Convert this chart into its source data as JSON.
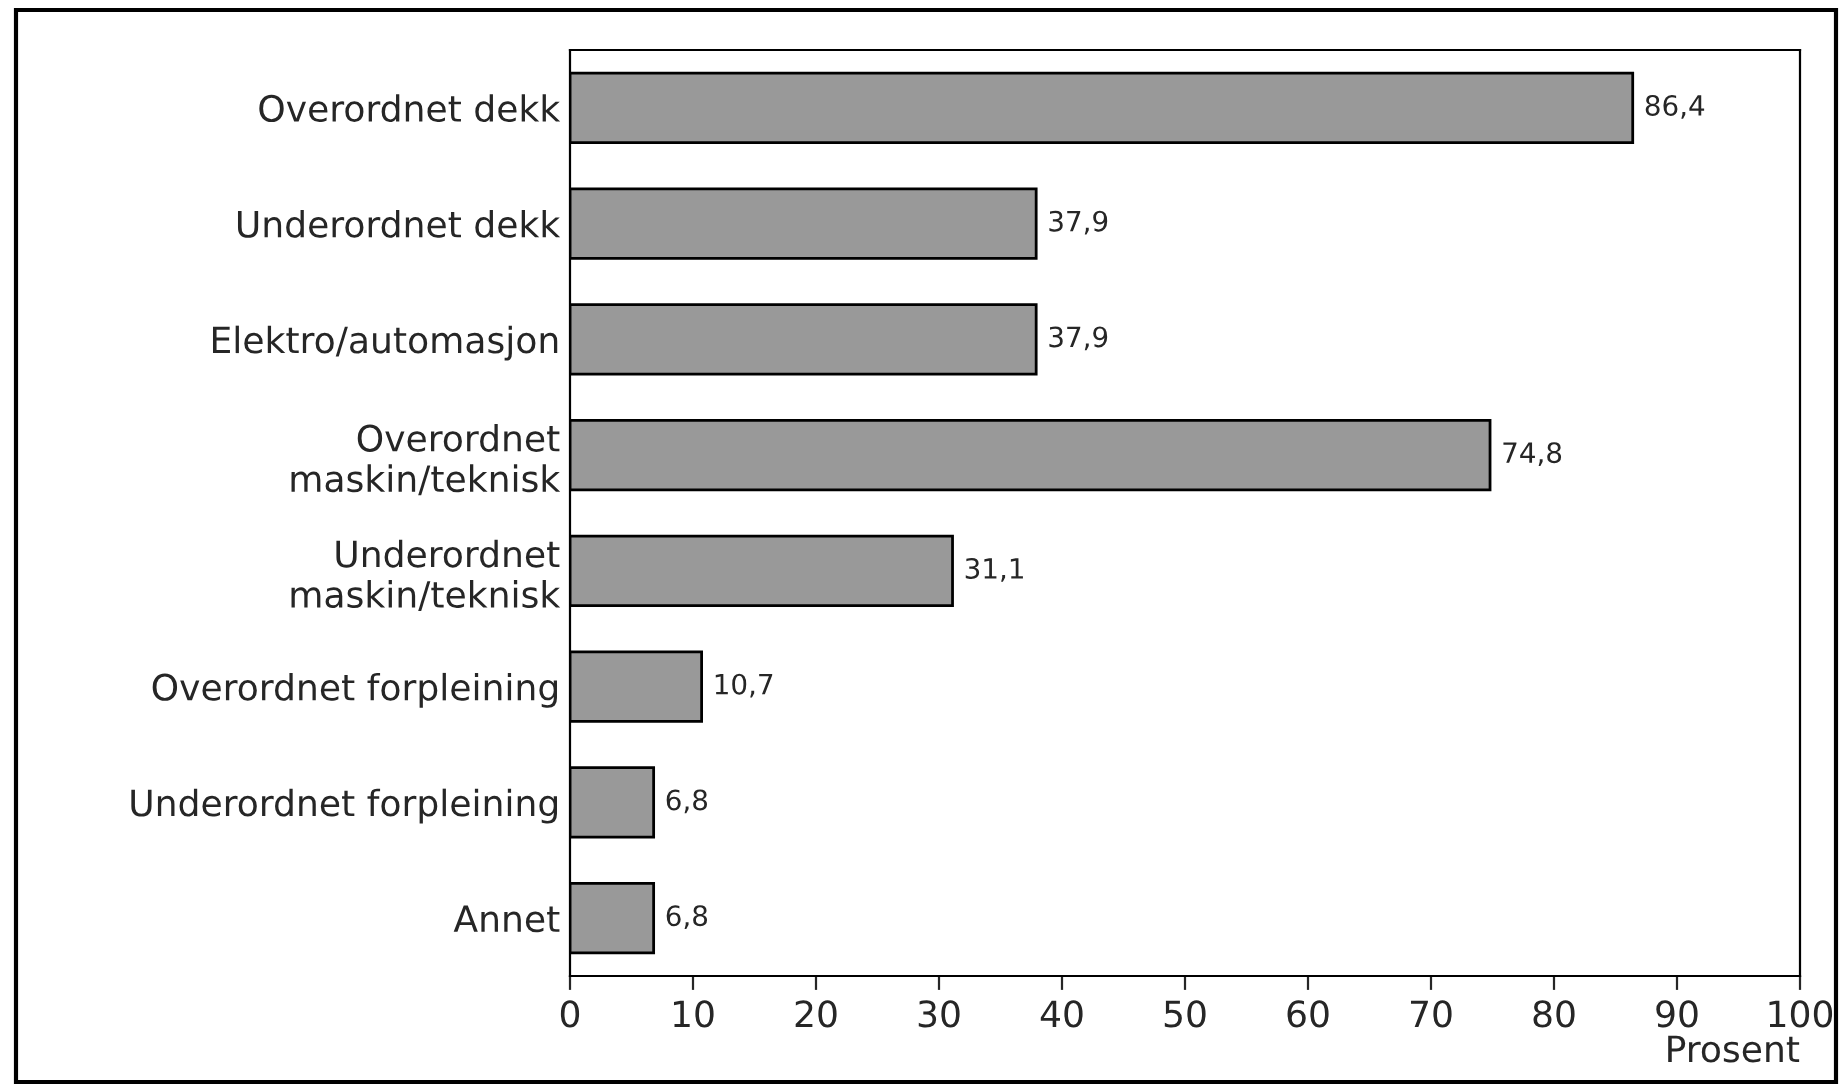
{
  "chart_data": {
    "type": "bar",
    "orientation": "horizontal",
    "xlabel": "Prosent",
    "categories": [
      "Overordnet dekk",
      "Underordnet dekk",
      "Elektro/automasjon",
      "Overordnet\nmaskin/teknisk",
      "Underordnet\nmaskin/teknisk",
      "Overordnet forpleining",
      "Underordnet forpleining",
      "Annet"
    ],
    "values": [
      86.4,
      37.9,
      37.9,
      74.8,
      31.1,
      10.7,
      6.8,
      6.8
    ],
    "value_labels": [
      "86,4",
      "37,9",
      "37,9",
      "74,8",
      "31,1",
      "10,7",
      "6,8",
      "6,8"
    ],
    "color": "#999999",
    "xlim": [
      0,
      100
    ],
    "xticks": [
      0,
      10,
      20,
      30,
      40,
      50,
      60,
      70,
      80,
      90,
      100
    ],
    "grid": false,
    "legend": false
  }
}
